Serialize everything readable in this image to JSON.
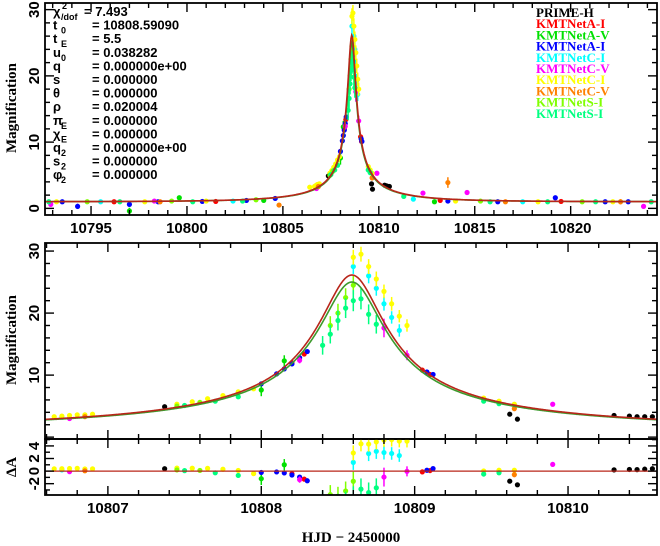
{
  "chart_data": [
    {
      "type": "scatter",
      "panel": "overview",
      "xlim": [
        10792.6,
        10824.5
      ],
      "ylim": [
        -1,
        31
      ],
      "xticks": [
        10795,
        10800,
        10805,
        10810,
        10815,
        10820
      ],
      "yticks": [
        0,
        10,
        20,
        30
      ],
      "ylabel": "Magnification",
      "grid": false,
      "legend_position": "top-right"
    },
    {
      "type": "scatter",
      "panel": "zoom",
      "xlim": [
        10806.59,
        10810.58
      ],
      "ylim": [
        -0.3,
        31.3
      ],
      "yticks": [
        10,
        20,
        30
      ],
      "ylabel": "Magnification",
      "grid": false
    },
    {
      "type": "scatter",
      "panel": "residuals",
      "xlim": [
        10806.59,
        10810.58
      ],
      "ylim": [
        -3.8,
        5.1
      ],
      "xticks": [
        10807,
        10808,
        10809,
        10810
      ],
      "yticks": [
        -2,
        0,
        2,
        4
      ],
      "ylabel": "ΔA",
      "xlabel": "HJD − 2450000",
      "grid": false
    }
  ],
  "model": {
    "t0": 10808.5909,
    "tE": 5.5,
    "u0": 0.038282,
    "rho": 0.020004,
    "curves": [
      {
        "color": "#3c9a2c",
        "fs": 0.955
      },
      {
        "color": "#b8261a",
        "fs": 1.0
      }
    ]
  },
  "parameters": [
    {
      "sym": "χ",
      "sup": "2",
      "sub": "/dof",
      "value": "= 7.493"
    },
    {
      "sym": "t",
      "sub": "0",
      "value": "= 10808.59090"
    },
    {
      "sym": "t",
      "sub": "E",
      "value": "= 5.5"
    },
    {
      "sym": "u",
      "sub": "0",
      "value": "= 0.038282"
    },
    {
      "sym": "q",
      "sub": "",
      "value": "= 0.000000e+00"
    },
    {
      "sym": "s",
      "sub": "",
      "value": "= 0.000000"
    },
    {
      "sym": "θ",
      "sub": "",
      "value": "= 0.000000"
    },
    {
      "sym": "ρ",
      "sub": "",
      "value": "= 0.020004"
    },
    {
      "sym": "π",
      "sub": "E",
      "value": "= 0.000000"
    },
    {
      "sym": "χ",
      "sub": "E",
      "value": "= 0.000000"
    },
    {
      "sym": "q",
      "sub": "2",
      "value": "= 0.000000e+00"
    },
    {
      "sym": "s",
      "sub": "2",
      "value": "= 0.000000"
    },
    {
      "sym": "φ",
      "sub": "2",
      "value": "= 0.000000"
    }
  ],
  "series": [
    {
      "name": "PRIME-H",
      "color": "#000000",
      "points": [
        [
          10807.37,
          4.9,
          0.15
        ],
        [
          10809.62,
          3.7,
          0.15
        ],
        [
          10809.67,
          2.9,
          0.15
        ],
        [
          10810.45,
          3.3,
          0.1
        ],
        [
          10810.5,
          3.3,
          0.1
        ],
        [
          10810.55,
          3.3,
          0.1
        ],
        [
          10810.3,
          3.5,
          0.1
        ],
        [
          10810.4,
          3.4,
          0.1
        ]
      ]
    },
    {
      "name": "KMTNetA-I",
      "color": "#ff0000",
      "points": [
        [
          10808.2,
          12.0,
          0.3
        ],
        [
          10808.28,
          13.4,
          0.3
        ],
        [
          10809.05,
          10.8,
          0.3
        ],
        [
          10809.1,
          10.1,
          0.3
        ],
        [
          10796.2,
          1.0,
          0.1
        ],
        [
          10801.5,
          1.05,
          0.1
        ],
        [
          10813.2,
          1.2,
          0.1
        ],
        [
          10819.5,
          1.05,
          0.1
        ]
      ]
    },
    {
      "name": "KMTNetA-V",
      "color": "#00e000",
      "points": [
        [
          10808.0,
          7.6,
          1.0
        ],
        [
          10808.15,
          12.3,
          0.9
        ],
        [
          10797.0,
          -0.4,
          0.5
        ],
        [
          10799.6,
          1.6,
          0.3
        ],
        [
          10812.9,
          1.0,
          0.3
        ],
        [
          10804.0,
          1.2,
          0.2
        ]
      ]
    },
    {
      "name": "KMTNetA-I",
      "color": "#0000ff",
      "points": [
        [
          10808.0,
          8.6,
          0.3
        ],
        [
          10808.1,
          10.2,
          0.3
        ],
        [
          10808.15,
          11.0,
          0.3
        ],
        [
          10808.2,
          11.8,
          0.3
        ],
        [
          10808.25,
          12.8,
          0.3
        ],
        [
          10808.3,
          13.8,
          0.3
        ],
        [
          10809.08,
          10.5,
          0.3
        ],
        [
          10809.12,
          10.1,
          0.3
        ],
        [
          10793.5,
          1.0,
          0.1
        ],
        [
          10794.3,
          0.3,
          0.4
        ],
        [
          10797.0,
          0.6,
          0.3
        ],
        [
          10798.5,
          1.0,
          0.1
        ],
        [
          10800.8,
          1.05,
          0.1
        ],
        [
          10803.1,
          1.2,
          0.1
        ],
        [
          10804.6,
          1.5,
          0.1
        ],
        [
          10813.6,
          1.1,
          0.1
        ],
        [
          10816.2,
          1.0,
          0.1
        ],
        [
          10819.2,
          1.6,
          0.3
        ],
        [
          10821.8,
          1.0,
          0.1
        ],
        [
          10823.0,
          1.0,
          0.1
        ]
      ]
    },
    {
      "name": "KMTNetC-I",
      "color": "#00ffff",
      "points": [
        [
          10806.7,
          3.2,
          0.2
        ],
        [
          10806.85,
          3.4,
          0.2
        ],
        [
          10808.6,
          27.5,
          1.2
        ],
        [
          10808.7,
          26.0,
          1.2
        ],
        [
          10808.75,
          24.0,
          1.2
        ],
        [
          10808.8,
          21.5,
          1.1
        ],
        [
          10808.85,
          19.3,
          1.0
        ],
        [
          10808.9,
          17.2,
          1.0
        ],
        [
          10795.5,
          1.0,
          0.1
        ],
        [
          10802.4,
          1.1,
          0.1
        ],
        [
          10811.8,
          1.4,
          0.1
        ],
        [
          10817.5,
          1.0,
          0.1
        ]
      ]
    },
    {
      "name": "KMTNetC-V",
      "color": "#ff00ff",
      "points": [
        [
          10806.75,
          3.0,
          0.2
        ],
        [
          10808.25,
          12.4,
          0.5
        ],
        [
          10808.8,
          17.6,
          1.5
        ],
        [
          10808.95,
          13.2,
          0.8
        ],
        [
          10809.9,
          5.3,
          0.3
        ],
        [
          10792.9,
          0.6,
          0.2
        ],
        [
          10798.3,
          1.1,
          0.1
        ],
        [
          10812.3,
          2.3,
          0.3
        ],
        [
          10814.6,
          2.4,
          0.3
        ],
        [
          10823.8,
          0.3,
          0.2
        ]
      ]
    },
    {
      "name": "KMTNetC-I",
      "color": "#ffff00",
      "points": [
        [
          10806.65,
          3.3,
          0.2
        ],
        [
          10806.7,
          3.4,
          0.2
        ],
        [
          10806.75,
          3.5,
          0.2
        ],
        [
          10806.8,
          3.6,
          0.2
        ],
        [
          10806.85,
          3.6,
          0.2
        ],
        [
          10806.9,
          3.7,
          0.2
        ],
        [
          10807.45,
          5.3,
          0.3
        ],
        [
          10807.55,
          5.7,
          0.3
        ],
        [
          10807.65,
          6.2,
          0.3
        ],
        [
          10807.75,
          6.7,
          0.3
        ],
        [
          10807.85,
          7.3,
          0.3
        ],
        [
          10807.95,
          7.8,
          0.3
        ],
        [
          10808.6,
          29.0,
          1.2
        ],
        [
          10808.65,
          29.5,
          1.2
        ],
        [
          10808.7,
          27.5,
          1.2
        ],
        [
          10808.75,
          25.5,
          1.2
        ],
        [
          10808.8,
          23.5,
          1.1
        ],
        [
          10808.85,
          21.5,
          1.1
        ],
        [
          10808.9,
          19.5,
          1.0
        ],
        [
          10808.95,
          18.0,
          1.0
        ],
        [
          10809.45,
          6.3,
          0.3
        ],
        [
          10809.55,
          5.8,
          0.3
        ],
        [
          10809.65,
          5.3,
          0.3
        ],
        [
          10793.2,
          1.0,
          0.1
        ],
        [
          10797.8,
          1.0,
          0.1
        ],
        [
          10801.0,
          1.1,
          0.1
        ],
        [
          10806.4,
          3.2,
          0.2
        ],
        [
          10814.0,
          1.1,
          0.1
        ],
        [
          10818.3,
          1.0,
          0.1
        ],
        [
          10822.2,
          1.0,
          0.1
        ]
      ]
    },
    {
      "name": "KMTNetC-V",
      "color": "#ff8000",
      "points": [
        [
          10806.85,
          3.3,
          0.2
        ],
        [
          10809.65,
          4.6,
          0.4
        ],
        [
          10798.6,
          1.0,
          0.1
        ],
        [
          10804.8,
          0.5,
          0.3
        ],
        [
          10813.6,
          3.9,
          0.8
        ],
        [
          10816.6,
          1.0,
          0.1
        ],
        [
          10822.6,
          1.0,
          0.4
        ]
      ]
    },
    {
      "name": "KMTNetS-I",
      "color": "#80ff00",
      "points": [
        [
          10807.45,
          5.0,
          0.3
        ],
        [
          10807.6,
          5.6,
          0.3
        ],
        [
          10808.45,
          18.0,
          1.5
        ],
        [
          10808.5,
          20.0,
          1.5
        ],
        [
          10808.55,
          22.5,
          1.5
        ],
        [
          10808.6,
          24.5,
          1.5
        ],
        [
          10794.8,
          1.0,
          0.1
        ],
        [
          10799.2,
          1.1,
          0.1
        ],
        [
          10803.6,
          1.3,
          0.1
        ],
        [
          10815.3,
          1.1,
          0.1
        ],
        [
          10820.6,
          1.0,
          0.1
        ]
      ]
    },
    {
      "name": "KMTNetS-I",
      "color": "#00ff80",
      "points": [
        [
          10807.5,
          5.1,
          0.3
        ],
        [
          10807.7,
          5.8,
          0.3
        ],
        [
          10807.85,
          6.5,
          0.3
        ],
        [
          10808.4,
          14.8,
          1.5
        ],
        [
          10808.45,
          16.6,
          1.5
        ],
        [
          10808.5,
          18.8,
          1.6
        ],
        [
          10808.55,
          20.8,
          1.6
        ],
        [
          10808.6,
          22.0,
          1.7
        ],
        [
          10808.65,
          22.3,
          1.7
        ],
        [
          10808.7,
          19.8,
          1.6
        ],
        [
          10808.75,
          18.2,
          1.5
        ],
        [
          10809.45,
          5.8,
          0.3
        ],
        [
          10809.55,
          5.4,
          0.3
        ],
        [
          10792.8,
          1.0,
          0.1
        ],
        [
          10796.5,
          1.0,
          0.1
        ],
        [
          10800.3,
          1.0,
          0.1
        ],
        [
          10802.9,
          1.1,
          0.1
        ],
        [
          10811.3,
          1.8,
          0.2
        ],
        [
          10815.8,
          1.0,
          0.1
        ],
        [
          10818.8,
          1.0,
          0.1
        ],
        [
          10821.3,
          1.0,
          0.1
        ],
        [
          10824.2,
          1.0,
          0.1
        ]
      ]
    }
  ],
  "legend": [
    "PRIME-H",
    "KMTNetA-I",
    "KMTNetA-V",
    "KMTNetA-I",
    "KMTNetC-I",
    "KMTNetC-V",
    "KMTNetC-I",
    "KMTNetC-V",
    "KMTNetS-I",
    "KMTNetS-I"
  ]
}
